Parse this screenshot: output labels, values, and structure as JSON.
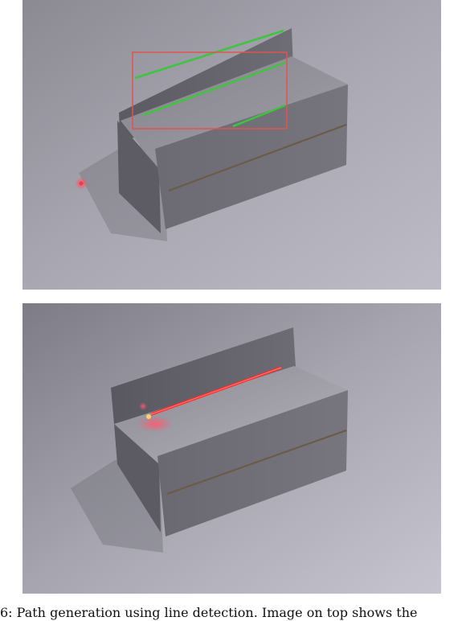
{
  "figure": {
    "top_image": {
      "description_name": "bracket-with-detected-lines",
      "detected_line_color": "#3ec43e",
      "roi_box_color": "#e0554f"
    },
    "bottom_image": {
      "description_name": "bracket-with-laser-path",
      "laser_color": "#ff2a2a"
    },
    "caption": "6: Path generation using line detection. Image on top shows the"
  }
}
